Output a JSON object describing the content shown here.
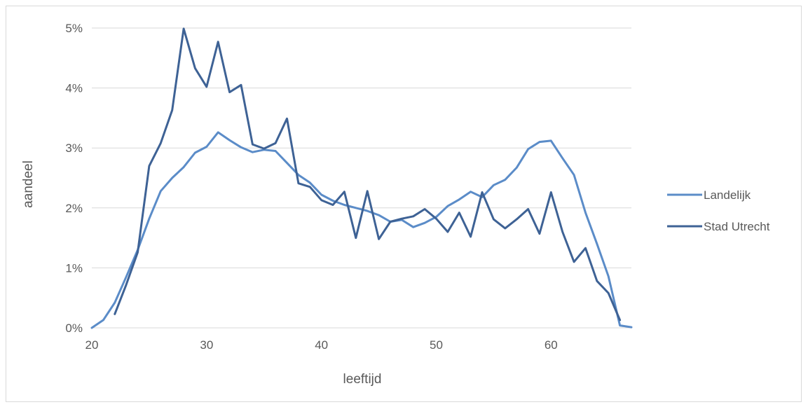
{
  "chart_data": {
    "type": "line",
    "title": "",
    "xlabel": "leeftijd",
    "ylabel": "aandeel",
    "xlim": [
      20,
      67
    ],
    "ylim": [
      0,
      5
    ],
    "x_ticks": [
      "20",
      "30",
      "40",
      "50",
      "60"
    ],
    "y_ticks": [
      "0%",
      "1%",
      "2%",
      "3%",
      "4%",
      "5%"
    ],
    "grid": true,
    "legend_position": "right",
    "series": [
      {
        "name": "Landelijk",
        "color": "#5B8CC8",
        "points": [
          [
            20,
            0.0
          ],
          [
            21,
            0.13
          ],
          [
            22,
            0.42
          ],
          [
            23,
            0.85
          ],
          [
            24,
            1.3
          ],
          [
            25,
            1.82
          ],
          [
            26,
            2.28
          ],
          [
            27,
            2.5
          ],
          [
            28,
            2.68
          ],
          [
            29,
            2.92
          ],
          [
            30,
            3.02
          ],
          [
            31,
            3.26
          ],
          [
            32,
            3.13
          ],
          [
            33,
            3.01
          ],
          [
            34,
            2.93
          ],
          [
            35,
            2.97
          ],
          [
            36,
            2.95
          ],
          [
            37,
            2.75
          ],
          [
            38,
            2.55
          ],
          [
            39,
            2.42
          ],
          [
            40,
            2.22
          ],
          [
            41,
            2.12
          ],
          [
            42,
            2.05
          ],
          [
            43,
            2.0
          ],
          [
            44,
            1.95
          ],
          [
            45,
            1.88
          ],
          [
            46,
            1.77
          ],
          [
            47,
            1.8
          ],
          [
            48,
            1.68
          ],
          [
            49,
            1.75
          ],
          [
            50,
            1.85
          ],
          [
            51,
            2.03
          ],
          [
            52,
            2.14
          ],
          [
            53,
            2.27
          ],
          [
            54,
            2.18
          ],
          [
            55,
            2.38
          ],
          [
            56,
            2.47
          ],
          [
            57,
            2.67
          ],
          [
            58,
            2.98
          ],
          [
            59,
            3.1
          ],
          [
            60,
            3.12
          ],
          [
            61,
            2.83
          ],
          [
            62,
            2.55
          ],
          [
            63,
            1.92
          ],
          [
            64,
            1.4
          ],
          [
            65,
            0.86
          ],
          [
            66,
            0.04
          ],
          [
            67,
            0.01
          ]
        ]
      },
      {
        "name": "Stad Utrecht",
        "color": "#3E6295",
        "points": [
          [
            22,
            0.23
          ],
          [
            23,
            0.72
          ],
          [
            24,
            1.26
          ],
          [
            25,
            2.7
          ],
          [
            26,
            3.08
          ],
          [
            27,
            3.63
          ],
          [
            28,
            4.99
          ],
          [
            29,
            4.33
          ],
          [
            30,
            4.02
          ],
          [
            31,
            4.77
          ],
          [
            32,
            3.93
          ],
          [
            33,
            4.05
          ],
          [
            34,
            3.06
          ],
          [
            35,
            2.99
          ],
          [
            36,
            3.08
          ],
          [
            37,
            3.49
          ],
          [
            38,
            2.41
          ],
          [
            39,
            2.35
          ],
          [
            40,
            2.13
          ],
          [
            41,
            2.05
          ],
          [
            42,
            2.27
          ],
          [
            43,
            1.5
          ],
          [
            44,
            2.28
          ],
          [
            45,
            1.48
          ],
          [
            46,
            1.77
          ],
          [
            47,
            1.82
          ],
          [
            48,
            1.86
          ],
          [
            49,
            1.98
          ],
          [
            50,
            1.82
          ],
          [
            51,
            1.6
          ],
          [
            52,
            1.92
          ],
          [
            53,
            1.52
          ],
          [
            54,
            2.26
          ],
          [
            55,
            1.81
          ],
          [
            56,
            1.66
          ],
          [
            57,
            1.81
          ],
          [
            58,
            1.98
          ],
          [
            59,
            1.57
          ],
          [
            60,
            2.26
          ],
          [
            61,
            1.6
          ],
          [
            62,
            1.1
          ],
          [
            63,
            1.33
          ],
          [
            64,
            0.78
          ],
          [
            65,
            0.58
          ],
          [
            66,
            0.13
          ]
        ]
      }
    ]
  }
}
